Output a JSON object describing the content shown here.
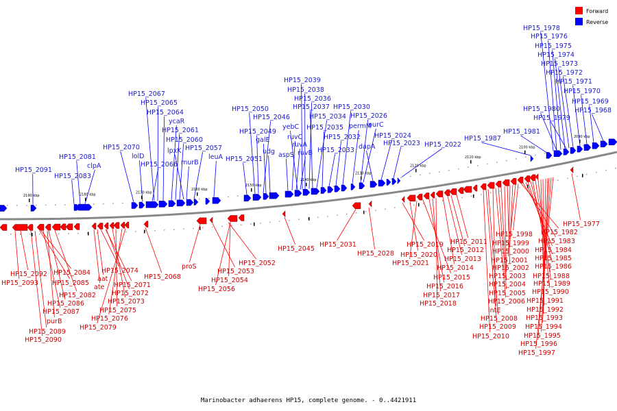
{
  "caption": "Marinobacter adhaerens HP15, complete genome. - 0..4421911",
  "colors": {
    "forward": "#ff0000",
    "reverse": "#0000ff",
    "forward_text": "#cc0000",
    "reverse_text": "#1a1acc",
    "axis": "#888888"
  },
  "legend": [
    {
      "label": "Forward",
      "strand": "forward"
    },
    {
      "label": "Reverse",
      "strand": "reverse"
    }
  ],
  "scale_ticks": [
    "2190 kbp",
    "2180 kbp",
    "2170 kbp",
    "2160 kbp",
    "2150 kbp",
    "2140 kbp",
    "2130 kbp",
    "2120 kbp",
    "2110 kbp",
    "2100 kbp",
    "2090 kbp"
  ],
  "reverse_genes": [
    "HP15_2091",
    "HP15_2083",
    "HP15_2081",
    "clpA",
    "HP15_2070",
    "lolD",
    "HP15_2067",
    "HP15_2065",
    "HP15_2066",
    "HP15_2064",
    "ycaR",
    "HP15_2061",
    "HP15_2060",
    "lpxK",
    "murB",
    "HP15_2057",
    "leuA",
    "HP15_2051",
    "HP15_2050",
    "HP15_2049",
    "HP15_2046",
    "galE",
    "udg",
    "aspS",
    "ruvC",
    "ruvA",
    "ruvB",
    "yebC",
    "HP15_2039",
    "HP15_2038",
    "HP15_2036",
    "HP15_2037",
    "HP15_2034",
    "HP15_2035",
    "HP15_2033",
    "HP15_2032",
    "HP15_2030",
    "permM",
    "purC",
    "HP15_2026",
    "dapA",
    "HP15_2024",
    "HP15_2023",
    "HP15_2022",
    "HP15_1987",
    "HP15_1981",
    "HP15_1980",
    "HP15_1979",
    "HP15_1978",
    "HP15_1976",
    "HP15_1975",
    "HP15_1974",
    "HP15_1973",
    "HP15_1972",
    "HP15_1971",
    "HP15_1970",
    "HP15_1969",
    "HP15_1968"
  ],
  "forward_genes": [
    "HP15_2092",
    "HP15_2093",
    "HP15_2084",
    "HP15_2085",
    "HP15_2082",
    "HP15_2086",
    "HP15_2087",
    "purB",
    "HP15_2089",
    "HP15_2090",
    "HP15_2074",
    "aat",
    "ate",
    "HP15_2071",
    "HP15_2072",
    "HP15_2073",
    "HP15_2075",
    "HP15_2076",
    "HP15_2079",
    "HP15_2068",
    "proS",
    "HP15_2053",
    "HP15_2052",
    "HP15_2054",
    "HP15_2056",
    "HP15_2045",
    "HP15_2031",
    "HP15_2028",
    "HP15_2019",
    "HP15_2020",
    "HP15_2021",
    "HP15_2015",
    "HP15_2016",
    "HP15_2017",
    "HP15_2018",
    "HP15_2014",
    "HP15_2013",
    "HP15_2012",
    "HP15_2011",
    "HP15_2010",
    "HP15_2009",
    "HP15_2008",
    "intE",
    "HP15_2006",
    "HP15_2005",
    "HP15_2004",
    "HP15_2003",
    "HP15_2002",
    "HP15_2001",
    "HP15_2000",
    "HP15_1999",
    "HP15_1998",
    "HP15_1977",
    "HP15_1982",
    "HP15_1983",
    "HP15_1984",
    "HP15_1985",
    "HP15_1986",
    "HP15_1988",
    "HP15_1989",
    "HP15_1990",
    "HP15_1991",
    "HP15_1992",
    "HP15_1993",
    "HP15_1994",
    "HP15_1995",
    "HP15_1996",
    "HP15_1997"
  ]
}
